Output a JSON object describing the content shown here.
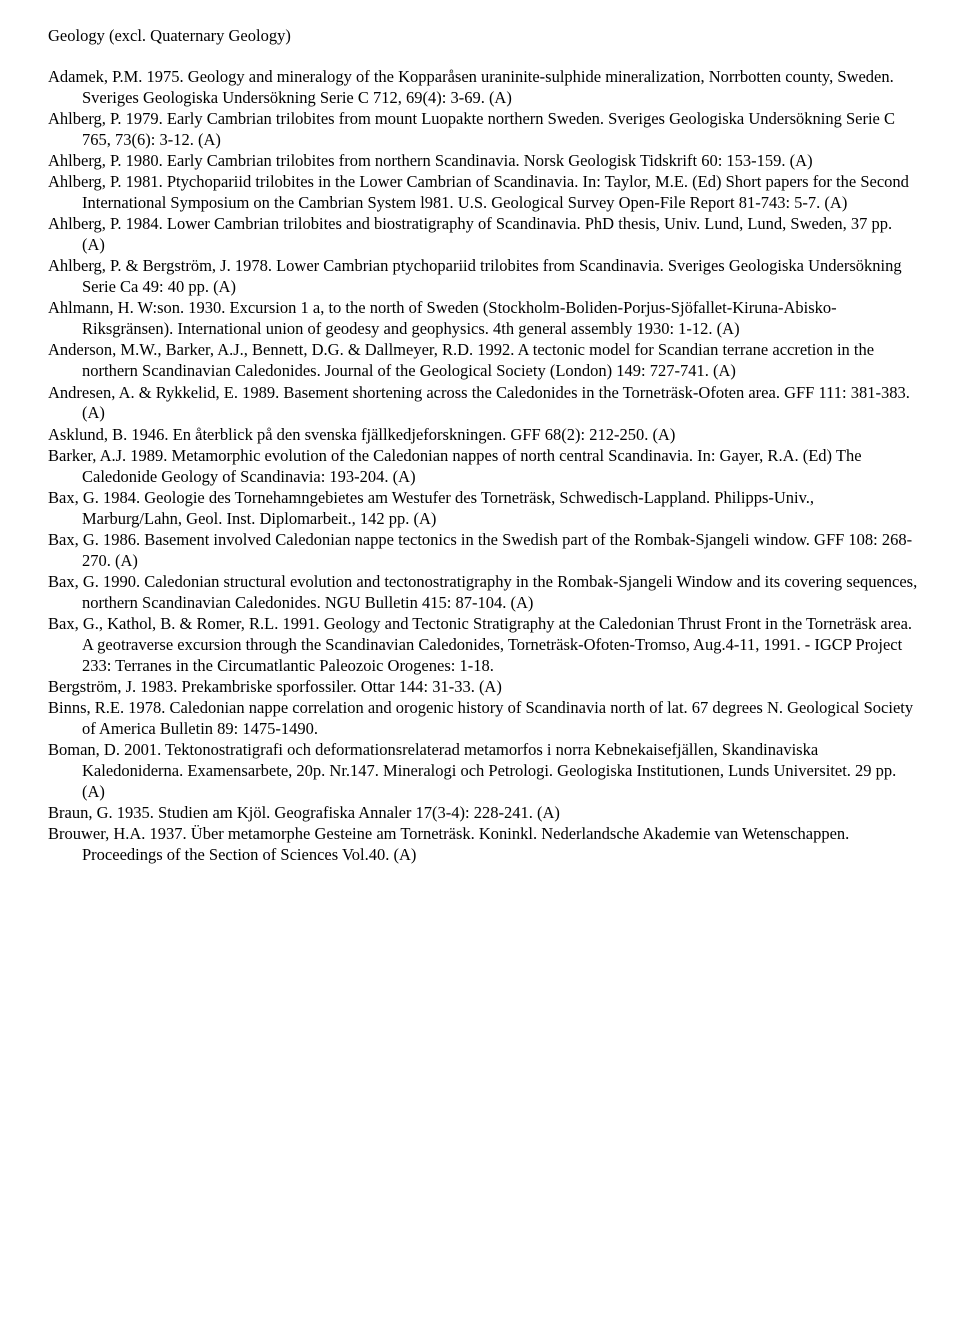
{
  "heading": "Geology (excl. Quaternary Geology)",
  "entries": [
    "Adamek, P.M. 1975. Geology and mineralogy of the Kopparåsen uraninite-sulphide mineralization, Norrbotten county, Sweden. Sveriges Geologiska Undersökning Serie C 712, 69(4): 3-69. (A)",
    "Ahlberg, P. 1979. Early Cambrian trilobites from mount Luopakte northern Sweden. Sveriges Geologiska Undersökning Serie C 765, 73(6): 3-12. (A)",
    "Ahlberg, P. 1980. Early Cambrian trilobites from northern Scandinavia. Norsk Geologisk Tidskrift  60: 153-159. (A)",
    "Ahlberg, P. 1981. Ptychopariid trilobites in the Lower Cambrian of Scandinavia. In: Taylor, M.E. (Ed) Short papers for the Second International Symposium on the Cambrian System l981. U.S. Geological Survey Open-File Report 81-743: 5-7. (A)",
    "Ahlberg, P. 1984. Lower Cambrian trilobites and biostratigraphy of Scandinavia. PhD thesis, Univ. Lund, Lund, Sweden, 37 pp. (A)",
    "Ahlberg, P. & Bergström, J. 1978. Lower Cambrian ptychopariid trilobites from Scandinavia. Sveriges Geologiska Undersökning Serie Ca 49: 40 pp. (A)",
    "Ahlmann, H. W:son. 1930. Excursion 1 a, to the north of Sweden (Stockholm-Boliden-Porjus-Sjöfallet-Kiruna-Abisko-Riksgränsen). International union of geodesy and geophysics. 4th general assembly 1930: 1-12. (A)",
    "Anderson, M.W., Barker, A.J., Bennett, D.G. & Dallmeyer, R.D. 1992. A tectonic model for Scandian terrane accretion in the northern Scandinavian Caledonides. Journal of the Geological Society (London) 149: 727-741. (A)",
    "Andresen, A. & Rykkelid, E. 1989. Basement shortening across the Caledonides in the Torneträsk-Ofoten area. GFF 111: 381-383. (A)",
    "Asklund, B. 1946. En återblick på den svenska fjällkedjeforskningen. GFF 68(2): 212-250. (A)",
    "Barker, A.J. 1989. Metamorphic evolution of the Caledonian nappes of north central Scandinavia. In: Gayer, R.A. (Ed) The Caledonide Geology of Scandinavia: 193-204. (A)",
    "Bax, G. 1984. Geologie des Tornehamngebietes am Westufer des Torneträsk, Schwedisch-Lappland. Philipps-Univ., Marburg/Lahn, Geol. Inst. Diplomarbeit., 142 pp. (A)",
    "Bax, G. 1986. Basement involved Caledonian nappe tectonics in the Swedish part of the Rombak-Sjangeli window. GFF 108: 268-270. (A)",
    "Bax, G. 1990. Caledonian structural evolution and tectonostratigraphy in the Rombak-Sjangeli Window and its covering sequences, northern Scandinavian Caledonides. NGU Bulletin 415: 87-104. (A)",
    "Bax, G., Kathol, B. & Romer, R.L. 1991. Geology and Tectonic Stratigraphy at the Caledonian Thrust Front in the Torneträsk area. A geotraverse excursion through the Scandinavian Caledonides, Torneträsk-Ofoten-Tromso, Aug.4-11, 1991. - IGCP Project 233: Terranes in the Circumatlantic Paleozoic Orogenes: 1-18.",
    "Bergström, J. 1983. Prekambriske sporfossiler. Ottar 144: 31-33. (A)",
    "Binns, R.E. 1978. Caledonian nappe correlation and orogenic history of Scandinavia north of lat. 67 degrees N. Geological Society of America Bulletin 89: 1475-1490.",
    "Boman, D. 2001. Tektonostratigrafi och deformationsrelaterad metamorfos i norra Kebnekaisefjällen, Skandinaviska Kaledoniderna. Examensarbete, 20p. Nr.147. Mineralogi och Petrologi. Geologiska Institutionen, Lunds Universitet. 29 pp. (A)",
    "Braun, G. 1935. Studien am Kjöl. Geografiska Annaler 17(3-4): 228-241. (A)",
    "Brouwer, H.A. 1937. Über metamorphe Gesteine am Torneträsk. Koninkl. Nederlandsche Akademie van Wetenschappen. Proceedings of the Section of Sciences Vol.40. (A)"
  ]
}
